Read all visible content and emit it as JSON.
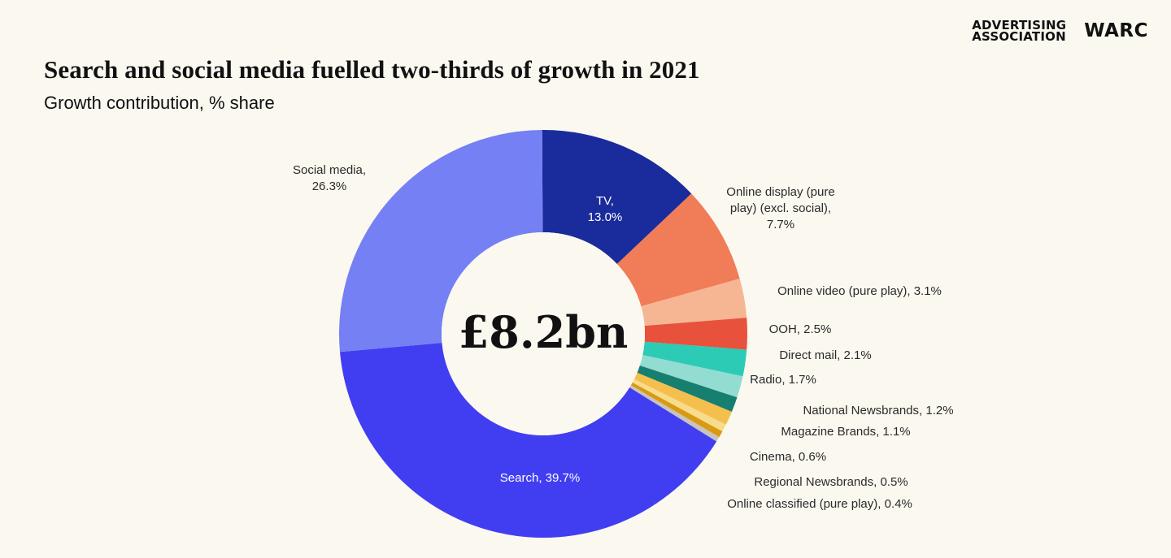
{
  "header": {
    "logo_aa_line1": "ADVERTISING",
    "logo_aa_line2": "ASSOCIATION",
    "logo_warc": "WARC"
  },
  "chart_data": {
    "type": "pie",
    "variant": "donut",
    "title": "Search and social media fuelled two-thirds of growth in 2021",
    "subtitle": "Growth contribution, % share",
    "center_label": "£8.2bn",
    "unit": "%",
    "start": "top",
    "direction": "clockwise",
    "slices": [
      {
        "name": "TV",
        "label": [
          "TV,",
          "13.0%"
        ],
        "value": 13.0,
        "color": "#1a2b9c",
        "label_inside": true
      },
      {
        "name": "Online display (pure play) (excl. social)",
        "label": [
          "Online display (pure",
          "play) (excl. social),",
          "7.7%"
        ],
        "value": 7.7,
        "color": "#f07c58",
        "label_inside": false
      },
      {
        "name": "Online video (pure play)",
        "label": [
          "Online video (pure play), 3.1%"
        ],
        "value": 3.1,
        "color": "#f6b693",
        "label_inside": false
      },
      {
        "name": "OOH",
        "label": [
          "OOH, 2.5%"
        ],
        "value": 2.5,
        "color": "#e8513c",
        "label_inside": false
      },
      {
        "name": "Direct mail",
        "label": [
          "Direct mail, 2.1%"
        ],
        "value": 2.1,
        "color": "#2ccbb5",
        "label_inside": false
      },
      {
        "name": "Radio",
        "label": [
          "Radio, 1.7%"
        ],
        "value": 1.7,
        "color": "#93dcd1",
        "label_inside": false
      },
      {
        "name": "National Newsbrands",
        "label": [
          "National Newsbrands, 1.2%"
        ],
        "value": 1.2,
        "color": "#177f70",
        "label_inside": false
      },
      {
        "name": "Magazine Brands",
        "label": [
          "Magazine Brands, 1.1%"
        ],
        "value": 1.1,
        "color": "#f4bf4c",
        "label_inside": false
      },
      {
        "name": "Cinema",
        "label": [
          "Cinema, 0.6%"
        ],
        "value": 0.6,
        "color": "#f7dc8c",
        "label_inside": false
      },
      {
        "name": "Regional Newsbrands",
        "label": [
          "Regional Newsbrands, 0.5%"
        ],
        "value": 0.5,
        "color": "#d99a12",
        "label_inside": false
      },
      {
        "name": "Online classified (pure play)",
        "label": [
          "Online classified (pure play), 0.4%"
        ],
        "value": 0.4,
        "color": "#c8c4bc",
        "label_inside": false
      },
      {
        "name": "Search",
        "label": [
          "Search, 39.7%"
        ],
        "value": 39.7,
        "color": "#413ef2",
        "label_inside": true
      },
      {
        "name": "Social media",
        "label": [
          "Social media,",
          "26.3%"
        ],
        "value": 26.3,
        "color": "#7480f3",
        "label_inside": false
      }
    ]
  }
}
